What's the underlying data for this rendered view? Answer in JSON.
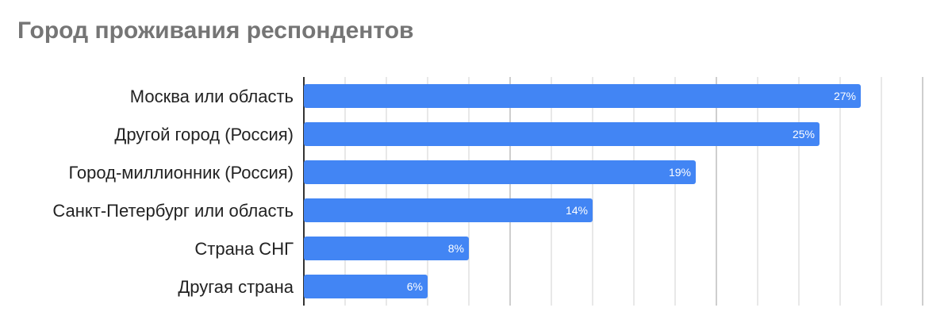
{
  "chart_data": {
    "type": "bar",
    "orientation": "horizontal",
    "title": "Город проживания респондентов",
    "categories": [
      "Москва или область",
      "Другой город (Россия)",
      "Город-миллионник (Россия)",
      "Санкт-Петербург или область",
      "Страна СНГ",
      "Другая страна"
    ],
    "values": [
      27,
      25,
      19,
      14,
      8,
      6
    ],
    "data_labels": [
      "27%",
      "25%",
      "19%",
      "14%",
      "8%",
      "6%"
    ],
    "xlim": [
      0,
      30
    ],
    "grid": true,
    "legend": "none",
    "bar_color": "#4285f4"
  }
}
